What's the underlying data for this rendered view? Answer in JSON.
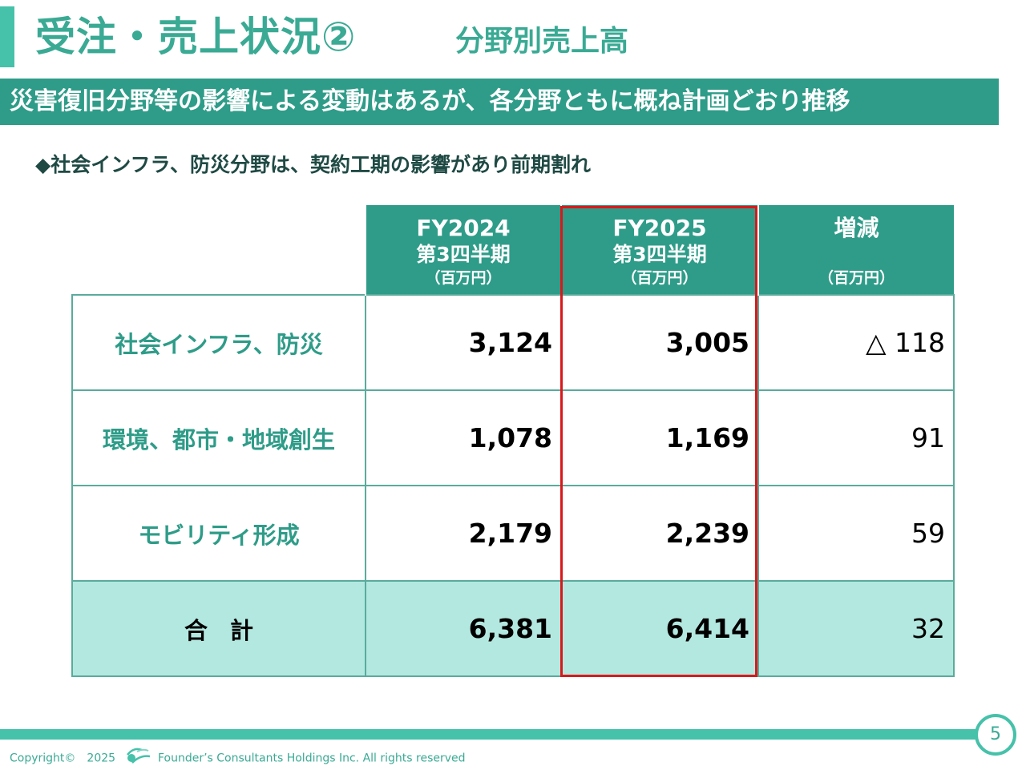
{
  "header": {
    "title": "受注・売上状況②",
    "subtitle": "分野別売上高"
  },
  "headline": "災害復旧分野等の影響による変動はあるが、各分野ともに概ね計画どおり推移",
  "bullet": "◆社会インフラ、防災分野は、契約工期の影響があり前期割れ",
  "table": {
    "columns": [
      {
        "line1": "FY2024",
        "line2": "第3四半期",
        "unit": "（百万円）"
      },
      {
        "line1": "FY2025",
        "line2": "第3四半期",
        "unit": "（百万円）"
      },
      {
        "line1": "増減",
        "line2": "",
        "unit": "（百万円）"
      }
    ],
    "rows": [
      {
        "label": "社会インフラ、防災",
        "fy2024": "3,124",
        "fy2025": "3,005",
        "change": "△ 118"
      },
      {
        "label": "環境、都市・地域創生",
        "fy2024": "1,078",
        "fy2025": "1,169",
        "change": "91"
      },
      {
        "label": "モビリティ形成",
        "fy2024": "2,179",
        "fy2025": "2,239",
        "change": "59"
      }
    ],
    "total": {
      "label": "合計",
      "fy2024": "6,381",
      "fy2025": "6,414",
      "change": "32"
    }
  },
  "footer": {
    "copyright": "Copyright©　2025",
    "company": "Founder’s Consultants Holdings Inc.  All rights reserved",
    "page_number": "5",
    "logo_icon": "company-logo-icon"
  },
  "colors": {
    "accent": "#46c1aa",
    "header_fill": "#2e9c88",
    "total_fill": "#b3e8e0",
    "highlight_border": "#d8191b"
  }
}
